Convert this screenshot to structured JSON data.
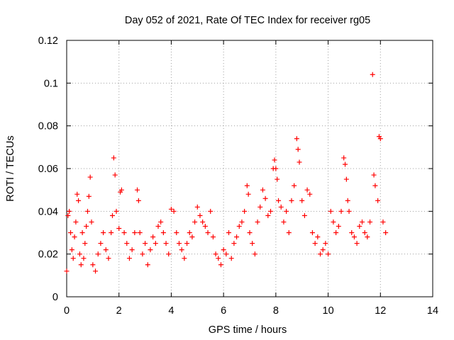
{
  "chart_data": {
    "type": "scatter",
    "title": "Day 052 of 2021, Rate Of TEC Index for receiver rg05",
    "xlabel": "GPS time / hours",
    "ylabel": "ROTI / TECUs",
    "xlim": [
      0,
      14
    ],
    "ylim": [
      0,
      0.12
    ],
    "xticks": [
      0,
      2,
      4,
      6,
      8,
      10,
      12,
      14
    ],
    "xtick_labels": [
      "0",
      "2",
      "4",
      "6",
      "8",
      "10",
      "12",
      "14"
    ],
    "yticks": [
      0,
      0.02,
      0.04,
      0.06,
      0.08,
      0.1,
      0.12
    ],
    "ytick_labels": [
      "0",
      "0.02",
      "0.04",
      "0.06",
      "0.08",
      "0.1",
      "0.12"
    ],
    "grid": true,
    "marker": "+",
    "series": [
      {
        "name": "ROTI",
        "color": "#ff0000",
        "x": [
          0.0,
          0.05,
          0.1,
          0.15,
          0.2,
          0.25,
          0.3,
          0.35,
          0.4,
          0.45,
          0.5,
          0.55,
          0.6,
          0.65,
          0.7,
          0.75,
          0.8,
          0.85,
          0.9,
          0.95,
          1.0,
          1.1,
          1.2,
          1.3,
          1.4,
          1.5,
          1.6,
          1.7,
          1.75,
          1.8,
          1.85,
          1.9,
          2.0,
          2.05,
          2.1,
          2.2,
          2.3,
          2.4,
          2.5,
          2.6,
          2.7,
          2.75,
          2.8,
          2.9,
          3.0,
          3.1,
          3.2,
          3.3,
          3.4,
          3.5,
          3.6,
          3.7,
          3.8,
          3.9,
          4.0,
          4.1,
          4.2,
          4.3,
          4.4,
          4.5,
          4.6,
          4.7,
          4.8,
          4.9,
          5.0,
          5.1,
          5.2,
          5.3,
          5.4,
          5.5,
          5.6,
          5.7,
          5.8,
          5.9,
          6.0,
          6.1,
          6.2,
          6.3,
          6.4,
          6.5,
          6.6,
          6.7,
          6.8,
          6.9,
          6.95,
          7.0,
          7.1,
          7.2,
          7.3,
          7.4,
          7.5,
          7.6,
          7.7,
          7.8,
          7.9,
          7.95,
          8.0,
          8.05,
          8.1,
          8.2,
          8.3,
          8.4,
          8.5,
          8.6,
          8.7,
          8.8,
          8.85,
          8.9,
          9.0,
          9.1,
          9.2,
          9.3,
          9.4,
          9.5,
          9.6,
          9.7,
          9.8,
          9.9,
          10.0,
          10.1,
          10.2,
          10.3,
          10.4,
          10.5,
          10.6,
          10.65,
          10.7,
          10.75,
          10.8,
          10.9,
          11.0,
          11.1,
          11.2,
          11.3,
          11.4,
          11.5,
          11.6,
          11.7,
          11.75,
          11.8,
          11.9,
          11.95,
          12.0,
          12.1,
          12.2
        ],
        "y": [
          0.012,
          0.038,
          0.04,
          0.03,
          0.022,
          0.018,
          0.028,
          0.035,
          0.048,
          0.045,
          0.02,
          0.015,
          0.03,
          0.018,
          0.025,
          0.033,
          0.04,
          0.047,
          0.056,
          0.035,
          0.015,
          0.012,
          0.02,
          0.025,
          0.03,
          0.022,
          0.018,
          0.03,
          0.038,
          0.065,
          0.057,
          0.04,
          0.032,
          0.049,
          0.05,
          0.03,
          0.025,
          0.018,
          0.022,
          0.03,
          0.05,
          0.045,
          0.03,
          0.02,
          0.025,
          0.015,
          0.022,
          0.028,
          0.025,
          0.033,
          0.035,
          0.03,
          0.025,
          0.02,
          0.041,
          0.04,
          0.03,
          0.025,
          0.022,
          0.018,
          0.025,
          0.03,
          0.028,
          0.035,
          0.042,
          0.038,
          0.035,
          0.033,
          0.03,
          0.04,
          0.028,
          0.02,
          0.018,
          0.015,
          0.022,
          0.02,
          0.03,
          0.018,
          0.025,
          0.028,
          0.033,
          0.035,
          0.04,
          0.052,
          0.048,
          0.03,
          0.025,
          0.02,
          0.035,
          0.042,
          0.05,
          0.046,
          0.038,
          0.04,
          0.06,
          0.064,
          0.06,
          0.055,
          0.045,
          0.042,
          0.035,
          0.04,
          0.03,
          0.045,
          0.052,
          0.074,
          0.069,
          0.063,
          0.045,
          0.038,
          0.05,
          0.048,
          0.03,
          0.025,
          0.028,
          0.02,
          0.022,
          0.025,
          0.02,
          0.04,
          0.035,
          0.03,
          0.033,
          0.04,
          0.065,
          0.062,
          0.055,
          0.045,
          0.04,
          0.03,
          0.028,
          0.025,
          0.033,
          0.035,
          0.03,
          0.028,
          0.035,
          0.104,
          0.057,
          0.052,
          0.045,
          0.075,
          0.074,
          0.035,
          0.03
        ]
      }
    ]
  }
}
